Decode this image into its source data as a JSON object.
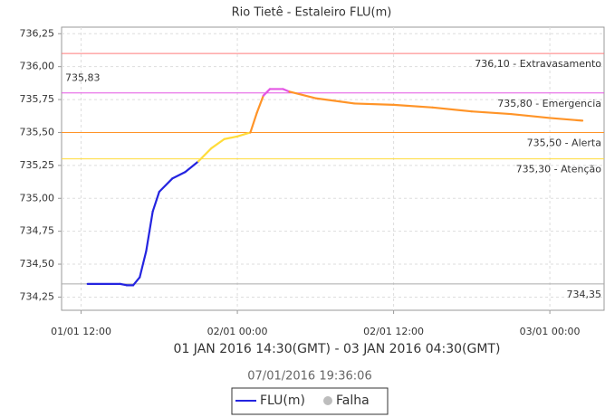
{
  "chart_data": {
    "type": "line",
    "title": "Rio Tietê - Estaleiro FLU(m)",
    "subtitle": "01 JAN 2016 14:30(GMT) - 03 JAN 2016 04:30(GMT)",
    "timestamp": "07/01/2016 19:36:06",
    "x": [
      "2016-01-01 12:30",
      "2016-01-01 15:00",
      "2016-01-01 15:30",
      "2016-01-01 16:00",
      "2016-01-01 16:30",
      "2016-01-01 17:00",
      "2016-01-01 17:30",
      "2016-01-01 18:00",
      "2016-01-01 19:00",
      "2016-01-01 20:00",
      "2016-01-01 21:00",
      "2016-01-01 22:00",
      "2016-01-01 23:00",
      "2016-01-02 00:00",
      "2016-01-02 01:00",
      "2016-01-02 01:30",
      "2016-01-02 02:00",
      "2016-01-02 02:30",
      "2016-01-02 03:30",
      "2016-01-02 04:00",
      "2016-01-02 06:00",
      "2016-01-02 09:00",
      "2016-01-02 12:00",
      "2016-01-02 15:00",
      "2016-01-02 18:00",
      "2016-01-02 21:00",
      "2016-01-03 00:00",
      "2016-01-03 02:30"
    ],
    "series": [
      {
        "name": "FLU(m)",
        "color": "#2424e0",
        "values": [
          734.35,
          734.35,
          734.34,
          734.34,
          734.4,
          734.6,
          734.9,
          735.05,
          735.15,
          735.2,
          735.28,
          735.38,
          735.45,
          735.47,
          735.5,
          735.65,
          735.78,
          735.83,
          735.83,
          735.81,
          735.76,
          735.72,
          735.71,
          735.69,
          735.66,
          735.64,
          735.61,
          735.59
        ]
      }
    ],
    "legend_items": [
      {
        "name": "Falha",
        "color": "#bdbdbd"
      }
    ],
    "thresholds": [
      {
        "value": 736.1,
        "label": "736,10 - Extravasamento",
        "color": "#ff7b7b"
      },
      {
        "value": 735.8,
        "label": "735,80 - Emergencia",
        "color": "#e455e4"
      },
      {
        "value": 735.5,
        "label": "735,50 - Alerta",
        "color": "#ff9428"
      },
      {
        "value": 735.3,
        "label": "735,30 - Atenção",
        "color": "#ffdc3a"
      }
    ],
    "min_line": {
      "value": 734.35,
      "label": "734,35",
      "color": "#aaaaaa"
    },
    "max_annotation": {
      "value": 735.83,
      "label": "735,83"
    },
    "xlim": [
      "2016-01-01 10:30",
      "2016-01-03 04:10"
    ],
    "xticks": [
      {
        "value": "2016-01-01 12:00",
        "label": "01/01 12:00"
      },
      {
        "value": "2016-01-02 00:00",
        "label": "02/01 00:00"
      },
      {
        "value": "2016-01-02 12:00",
        "label": "02/01 12:00"
      },
      {
        "value": "2016-01-03 00:00",
        "label": "03/01 00:00"
      }
    ],
    "ylim": [
      734.15,
      736.3
    ],
    "yticks": [
      {
        "value": 734.25,
        "label": "734,25"
      },
      {
        "value": 734.5,
        "label": "734,50"
      },
      {
        "value": 734.75,
        "label": "734,75"
      },
      {
        "value": 735.0,
        "label": "735,00"
      },
      {
        "value": 735.25,
        "label": "735,25"
      },
      {
        "value": 735.5,
        "label": "735,50"
      },
      {
        "value": 735.75,
        "label": "735,75"
      },
      {
        "value": 736.0,
        "label": "736,00"
      },
      {
        "value": 736.25,
        "label": "736,25"
      }
    ],
    "grid": true
  }
}
